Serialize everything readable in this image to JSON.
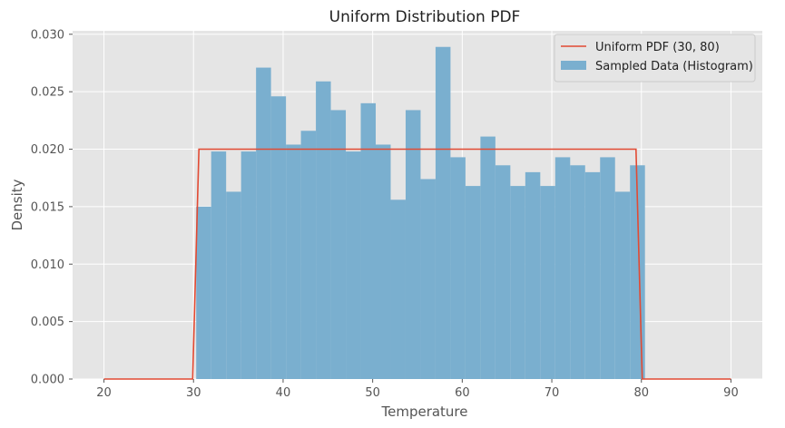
{
  "chart_data": {
    "type": "bar",
    "title": "Uniform Distribution PDF",
    "xlabel": "Temperature",
    "ylabel": "Density",
    "xlim": [
      16.5,
      93.5
    ],
    "ylim": [
      0,
      0.0303
    ],
    "xticks": [
      "20",
      "30",
      "40",
      "50",
      "60",
      "70",
      "80",
      "90"
    ],
    "yticks": [
      "0.000",
      "0.005",
      "0.010",
      "0.015",
      "0.020",
      "0.025",
      "0.030"
    ],
    "grid": true,
    "legend_position": "top-right",
    "colors": {
      "histogram": "#7aafcf",
      "pdf": "#e24a33",
      "plot_bg": "#e5e5e5",
      "grid": "#ffffff"
    },
    "series": [
      {
        "name": "Sampled Data (Histogram)",
        "type": "histogram",
        "bin_start": 30.3,
        "bin_width": 1.67,
        "values": [
          0.015,
          0.0198,
          0.0163,
          0.0198,
          0.0271,
          0.0246,
          0.0204,
          0.0216,
          0.0259,
          0.0234,
          0.0198,
          0.024,
          0.0204,
          0.0156,
          0.0234,
          0.0174,
          0.0289,
          0.0193,
          0.0168,
          0.0211,
          0.0186,
          0.0168,
          0.018,
          0.0168,
          0.0193,
          0.0186,
          0.018,
          0.0193,
          0.0163,
          0.0186
        ]
      },
      {
        "name": "Uniform PDF (30, 80)",
        "type": "line",
        "x": [
          20,
          29.9,
          30.6,
          79.4,
          80.1,
          90
        ],
        "y": [
          0,
          0,
          0.02,
          0.02,
          0,
          0
        ]
      }
    ]
  }
}
